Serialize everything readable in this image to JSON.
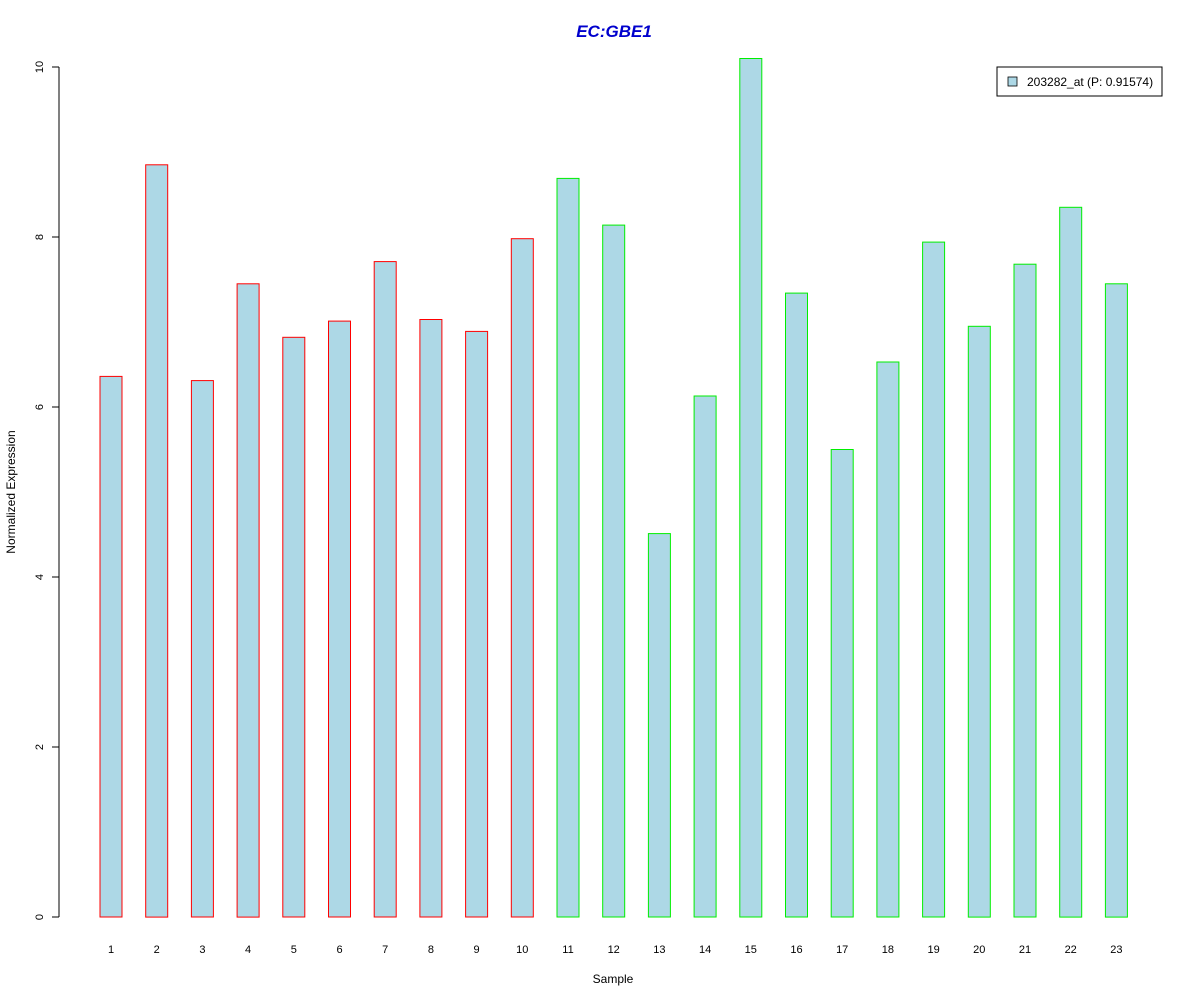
{
  "chart_data": {
    "type": "bar",
    "title": "EC:GBE1",
    "xlabel": "Sample",
    "ylabel": "Normalized Expression",
    "ylim": [
      0,
      10
    ],
    "yticks": [
      0,
      2,
      4,
      6,
      8,
      10
    ],
    "categories": [
      "1",
      "2",
      "3",
      "4",
      "5",
      "6",
      "7",
      "8",
      "9",
      "10",
      "11",
      "12",
      "13",
      "14",
      "15",
      "16",
      "17",
      "18",
      "19",
      "20",
      "21",
      "22",
      "23"
    ],
    "series": [
      {
        "name": "203282_at (P: 0.91574)",
        "values": [
          6.36,
          8.85,
          6.31,
          7.45,
          6.82,
          7.01,
          7.71,
          7.03,
          6.89,
          7.98,
          8.69,
          8.14,
          4.51,
          6.13,
          10.1,
          7.34,
          5.5,
          6.53,
          7.94,
          6.95,
          7.68,
          8.35,
          7.45
        ]
      }
    ],
    "groups": [
      {
        "samples": [
          1,
          10
        ],
        "border_color": "#ff0000"
      },
      {
        "samples": [
          11,
          23
        ],
        "border_color": "#00ee00"
      }
    ],
    "bar_fill": "#add8e6",
    "title_color": "#0000cd",
    "legend_position": "top-right",
    "grid": false
  }
}
